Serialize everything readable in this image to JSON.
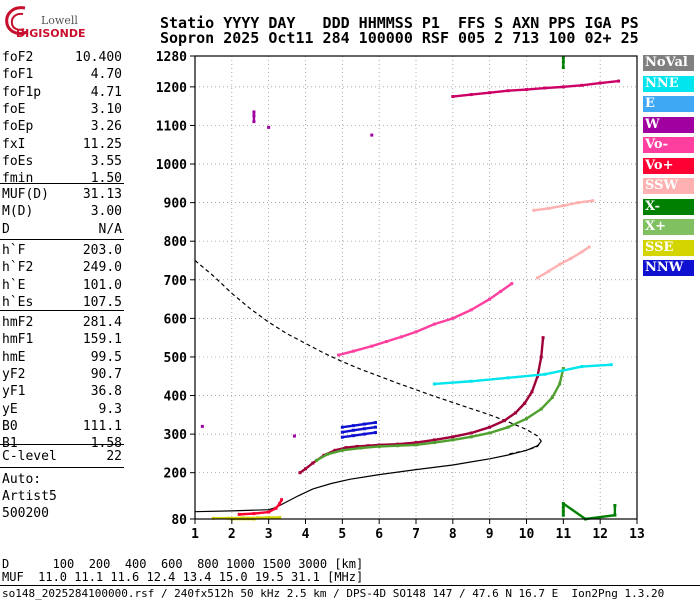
{
  "logo": {
    "brand": "Lowell",
    "name": "DIGISONDE"
  },
  "header": {
    "line1": "Statio YYYY DAY   DDD HHMMSS P1  FFS S AXN PPS IGA PS",
    "line2": "Sopron 2025 Oct11 284 100000 RSF 005 2 713 100 02+ 25"
  },
  "params_group1": [
    {
      "name": "foF2",
      "value": "10.400"
    },
    {
      "name": "foF1",
      "value": "4.70"
    },
    {
      "name": "foF1p",
      "value": "4.71"
    },
    {
      "name": "foE",
      "value": "3.10"
    },
    {
      "name": "foEp",
      "value": "3.26"
    },
    {
      "name": "fxI",
      "value": "11.25"
    },
    {
      "name": "foEs",
      "value": "3.55"
    },
    {
      "name": "fmin",
      "value": "1.50"
    }
  ],
  "params_group2": [
    {
      "name": "MUF(D)",
      "value": "31.13"
    },
    {
      "name": "M(D)",
      "value": "3.00"
    },
    {
      "name": "D",
      "value": "N/A"
    }
  ],
  "params_group3": [
    {
      "name": "h`F",
      "value": "203.0"
    },
    {
      "name": "h`F2",
      "value": "249.0"
    },
    {
      "name": "h`E",
      "value": "101.0"
    },
    {
      "name": "h`Es",
      "value": "107.5"
    }
  ],
  "params_group4": [
    {
      "name": "hmF2",
      "value": "281.4"
    },
    {
      "name": "hmF1",
      "value": "159.1"
    },
    {
      "name": "hmE",
      "value": "99.5"
    },
    {
      "name": "yF2",
      "value": "90.7"
    },
    {
      "name": "yF1",
      "value": "36.8"
    },
    {
      "name": "yE",
      "value": "9.3"
    },
    {
      "name": "B0",
      "value": "111.1"
    },
    {
      "name": "B1",
      "value": "1.58"
    }
  ],
  "params_group5": [
    {
      "name": "C-level",
      "value": "22"
    }
  ],
  "auto": {
    "line1": "Auto:",
    "line2": "Artist5",
    "line3": "500200"
  },
  "legend": [
    {
      "label": "NoVal",
      "color": "#808080"
    },
    {
      "label": "NNE",
      "color": "#00e5ee"
    },
    {
      "label": "E",
      "color": "#3ea8f4"
    },
    {
      "label": "W",
      "color": "#a000a0"
    },
    {
      "label": "Vo-",
      "color": "#ff3fa0"
    },
    {
      "label": "Vo+",
      "color": "#ff0033"
    },
    {
      "label": "SSW",
      "color": "#ffb0b0"
    },
    {
      "label": "X-",
      "color": "#008000"
    },
    {
      "label": "X+",
      "color": "#80c060"
    },
    {
      "label": "SSE",
      "color": "#d4d400"
    },
    {
      "label": "NNW",
      "color": "#1010d0"
    }
  ],
  "footer": {
    "d_line": "D      100  200  400  600  800 1000 1500 3000 [km]",
    "muf_line": "MUF  11.0 11.1 11.6 12.4 13.4 15.0 19.5 31.1 [MHz]",
    "info_line": "so148_2025284100000.rsf / 240fx512h 50 kHz 2.5 km / DPS-4D SO148 147 / 47.6 N 16.7 E  Ion2Png 1.3.20"
  },
  "chart_data": {
    "type": "scatter",
    "xlim": [
      1,
      13
    ],
    "ylim": [
      80,
      1280
    ],
    "x_ticks": [
      1,
      2,
      3,
      4,
      5,
      6,
      7,
      8,
      9,
      10,
      11,
      12,
      13
    ],
    "y_ticks": [
      80,
      200,
      300,
      400,
      500,
      600,
      700,
      800,
      900,
      1000,
      1100,
      1200,
      1280
    ],
    "series": [
      {
        "color": "#a0003a",
        "points": [
          [
            3.85,
            200
          ],
          [
            4.0,
            210
          ],
          [
            4.2,
            225
          ],
          [
            4.5,
            245
          ],
          [
            4.8,
            258
          ],
          [
            5.1,
            265
          ],
          [
            5.4,
            268
          ],
          [
            5.7,
            270
          ],
          [
            6.0,
            272
          ],
          [
            6.5,
            274
          ],
          [
            7.0,
            278
          ],
          [
            7.5,
            285
          ],
          [
            8.0,
            293
          ],
          [
            8.5,
            303
          ],
          [
            9.0,
            318
          ],
          [
            9.4,
            335
          ],
          [
            9.7,
            355
          ],
          [
            9.95,
            380
          ],
          [
            10.15,
            410
          ],
          [
            10.3,
            450
          ],
          [
            10.4,
            500
          ],
          [
            10.45,
            550
          ]
        ]
      },
      {
        "color": "#50a030",
        "points": [
          [
            4.3,
            232
          ],
          [
            4.6,
            248
          ],
          [
            5.0,
            258
          ],
          [
            5.5,
            264
          ],
          [
            6.0,
            268
          ],
          [
            6.5,
            270
          ],
          [
            7.0,
            272
          ],
          [
            7.5,
            278
          ],
          [
            8.0,
            285
          ],
          [
            8.5,
            293
          ],
          [
            9.0,
            303
          ],
          [
            9.5,
            318
          ],
          [
            10.0,
            340
          ],
          [
            10.4,
            365
          ],
          [
            10.7,
            395
          ],
          [
            10.9,
            430
          ],
          [
            11.0,
            470
          ]
        ]
      },
      {
        "color": "#ff3fa0",
        "points": [
          [
            4.9,
            505
          ],
          [
            5.3,
            515
          ],
          [
            5.8,
            528
          ],
          [
            6.2,
            540
          ],
          [
            6.6,
            552
          ],
          [
            7.0,
            565
          ],
          [
            7.5,
            585
          ],
          [
            8.0,
            600
          ],
          [
            8.5,
            622
          ],
          [
            9.0,
            650
          ],
          [
            9.3,
            670
          ],
          [
            9.6,
            690
          ]
        ]
      },
      {
        "color": "#cc0066",
        "points": [
          [
            8.0,
            1175
          ],
          [
            8.5,
            1180
          ],
          [
            9.0,
            1185
          ],
          [
            9.5,
            1190
          ],
          [
            10.0,
            1193
          ],
          [
            10.5,
            1197
          ],
          [
            11.0,
            1200
          ],
          [
            11.5,
            1204
          ],
          [
            12.0,
            1210
          ],
          [
            12.5,
            1215
          ]
        ]
      },
      {
        "color": "#ffb0b0",
        "points": [
          [
            10.3,
            705
          ],
          [
            10.6,
            722
          ],
          [
            10.9,
            740
          ],
          [
            11.2,
            755
          ],
          [
            11.5,
            772
          ],
          [
            11.7,
            785
          ]
        ]
      },
      {
        "color": "#ffb0b0",
        "points": [
          [
            10.2,
            880
          ],
          [
            10.6,
            885
          ],
          [
            11.0,
            892
          ],
          [
            11.4,
            900
          ],
          [
            11.8,
            905
          ]
        ]
      },
      {
        "color": "#1010d0",
        "points": [
          [
            5.0,
            292
          ],
          [
            5.3,
            296
          ],
          [
            5.6,
            300
          ],
          [
            5.9,
            304
          ],
          [
            5.0,
            305
          ],
          [
            5.3,
            310
          ],
          [
            5.6,
            314
          ],
          [
            5.9,
            318
          ],
          [
            5.0,
            318
          ],
          [
            5.3,
            322
          ],
          [
            5.6,
            326
          ],
          [
            5.9,
            330
          ]
        ]
      },
      {
        "color": "#d4d400",
        "points": [
          [
            1.5,
            82
          ],
          [
            1.9,
            82
          ],
          [
            2.3,
            83
          ],
          [
            2.7,
            83
          ],
          [
            3.0,
            84
          ],
          [
            3.3,
            84
          ],
          [
            2.0,
            80
          ],
          [
            2.6,
            80
          ]
        ]
      },
      {
        "color": "#ff0033",
        "points": [
          [
            2.2,
            92
          ],
          [
            2.6,
            94
          ],
          [
            3.0,
            98
          ],
          [
            3.2,
            108
          ],
          [
            3.3,
            120
          ],
          [
            3.35,
            130
          ]
        ]
      },
      {
        "color": "#00e5ee",
        "points": [
          [
            7.5,
            430
          ],
          [
            8.5,
            437
          ],
          [
            9.5,
            446
          ],
          [
            10.5,
            455
          ],
          [
            11.5,
            475
          ],
          [
            12.3,
            480
          ]
        ]
      },
      {
        "color": "#008000",
        "points": [
          [
            11.0,
            1250
          ],
          [
            11.0,
            1265
          ],
          [
            11.0,
            1275
          ],
          [
            11.0,
            90
          ],
          [
            11.0,
            100
          ],
          [
            11.0,
            110
          ],
          [
            11.0,
            120
          ],
          [
            11.6,
            80
          ],
          [
            12.4,
            90
          ],
          [
            12.4,
            115
          ]
        ]
      },
      {
        "color": "#a000a0",
        "points": [
          [
            1.2,
            320
          ],
          [
            3.7,
            295
          ],
          [
            5.8,
            1075
          ],
          [
            3.0,
            1095
          ],
          [
            2.6,
            1110
          ],
          [
            2.6,
            1125
          ],
          [
            2.6,
            1135
          ]
        ]
      }
    ],
    "profiles": [
      {
        "style": "dashed",
        "points": [
          [
            1.0,
            750
          ],
          [
            1.5,
            710
          ],
          [
            2.0,
            665
          ],
          [
            2.5,
            625
          ],
          [
            3.0,
            590
          ],
          [
            3.5,
            560
          ],
          [
            4.0,
            535
          ],
          [
            4.5,
            510
          ],
          [
            5.0,
            488
          ],
          [
            5.5,
            468
          ],
          [
            6.0,
            450
          ],
          [
            6.5,
            432
          ],
          [
            7.0,
            415
          ],
          [
            7.5,
            398
          ],
          [
            8.0,
            382
          ],
          [
            8.5,
            366
          ],
          [
            9.0,
            350
          ],
          [
            9.5,
            332
          ],
          [
            10.0,
            312
          ],
          [
            10.3,
            295
          ],
          [
            10.4,
            282
          ],
          [
            10.3,
            268
          ],
          [
            10.0,
            258
          ],
          [
            9.5,
            248
          ]
        ]
      },
      {
        "style": "solid",
        "points": [
          [
            1.0,
            99
          ],
          [
            2.0,
            101
          ],
          [
            3.0,
            104
          ],
          [
            3.2,
            110
          ],
          [
            3.5,
            125
          ],
          [
            3.8,
            140
          ],
          [
            4.2,
            158
          ],
          [
            4.7,
            172
          ],
          [
            5.2,
            183
          ],
          [
            6.0,
            195
          ],
          [
            7.0,
            208
          ],
          [
            8.0,
            220
          ],
          [
            8.5,
            228
          ],
          [
            9.0,
            236
          ],
          [
            9.5,
            246
          ],
          [
            10.0,
            258
          ],
          [
            10.3,
            270
          ],
          [
            10.4,
            281
          ]
        ]
      }
    ]
  }
}
